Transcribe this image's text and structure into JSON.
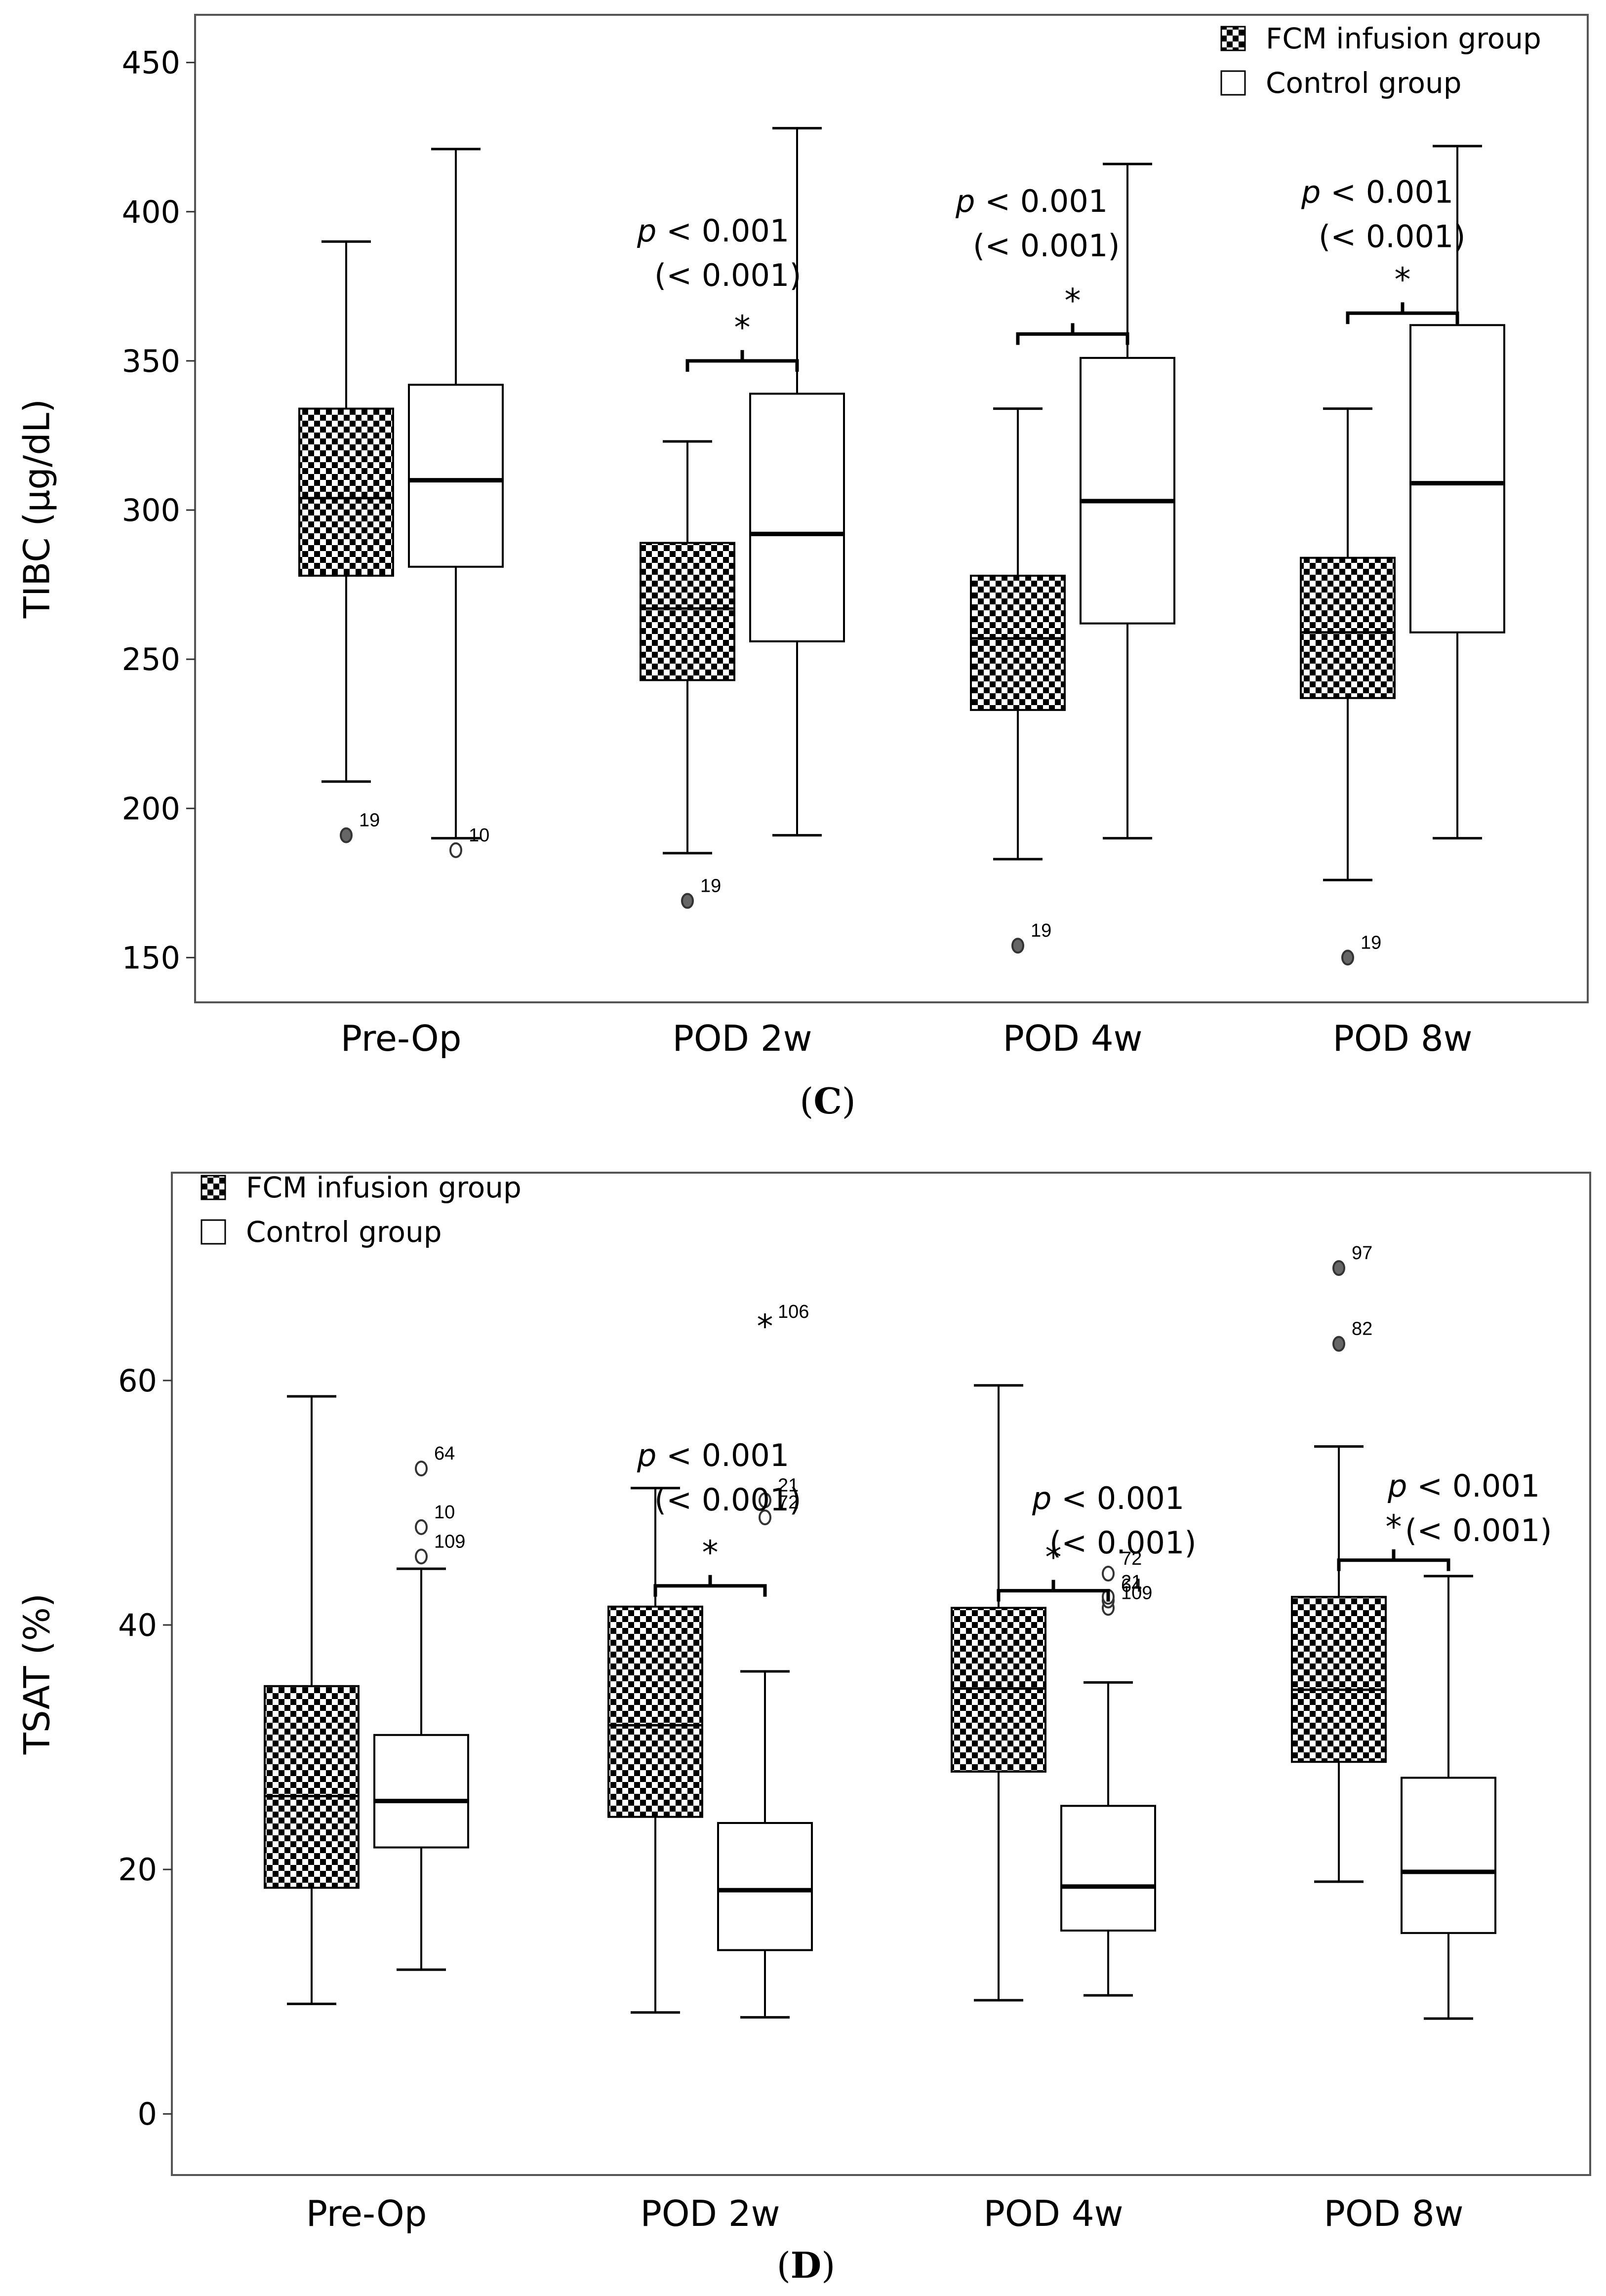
{
  "colors": {
    "axis": "#555555",
    "box_stroke": "#000000",
    "checker_dark": "#000000",
    "checker_light": "#ffffff"
  },
  "chart_data": [
    {
      "panel_label": "(C)",
      "panel_letter": "C",
      "type": "box",
      "ylabel": "TIBC (μg/dL)",
      "ylim": [
        135,
        466
      ],
      "yticks": [
        150,
        200,
        250,
        300,
        350,
        400,
        450
      ],
      "categories": [
        "Pre-Op",
        "POD 2w",
        "POD 4w",
        "POD 8w"
      ],
      "legend": {
        "position": "top-right",
        "entries": [
          {
            "label": "FCM infusion group",
            "fill": "checker"
          },
          {
            "label": "Control group",
            "fill": "white"
          }
        ]
      },
      "series": [
        {
          "name": "FCM infusion group",
          "boxes": [
            {
              "min": 209,
              "q1": 278,
              "median": 304,
              "q3": 334,
              "max": 390,
              "outliers": [
                {
                  "value": 191,
                  "label": "19",
                  "symbol": "o"
                }
              ]
            },
            {
              "min": 185,
              "q1": 243,
              "median": 267,
              "q3": 289,
              "max": 323,
              "outliers": [
                {
                  "value": 169,
                  "label": "19",
                  "symbol": "o"
                }
              ]
            },
            {
              "min": 183,
              "q1": 233,
              "median": 257,
              "q3": 278,
              "max": 334,
              "outliers": [
                {
                  "value": 154,
                  "label": "19",
                  "symbol": "o"
                }
              ]
            },
            {
              "min": 176,
              "q1": 237,
              "median": 259,
              "q3": 284,
              "max": 334,
              "outliers": [
                {
                  "value": 150,
                  "label": "19",
                  "symbol": "o"
                }
              ]
            }
          ]
        },
        {
          "name": "Control group",
          "boxes": [
            {
              "min": 190,
              "q1": 281,
              "median": 310,
              "q3": 342,
              "max": 421,
              "outliers": [
                {
                  "value": 186,
                  "label": "10",
                  "symbol": "o"
                }
              ]
            },
            {
              "min": 191,
              "q1": 256,
              "median": 292,
              "q3": 339,
              "max": 428,
              "outliers": []
            },
            {
              "min": 190,
              "q1": 262,
              "median": 303,
              "q3": 351,
              "max": 416,
              "outliers": []
            },
            {
              "min": 190,
              "q1": 259,
              "median": 309,
              "q3": 362,
              "max": 422,
              "outliers": []
            }
          ]
        }
      ],
      "annotations": [
        {
          "category": "POD 2w",
          "p": "p",
          "p_rest": " < 0.001",
          "paren": "(< 0.001)",
          "star": "*",
          "bracket_y": 350,
          "text_y": 390
        },
        {
          "category": "POD 4w",
          "p": "p",
          "p_rest": " < 0.001",
          "paren": "(< 0.001)",
          "star": "*",
          "bracket_y": 359,
          "text_y": 400
        },
        {
          "category": "POD 8w",
          "p": "p",
          "p_rest": " < 0.001",
          "paren": "(< 0.001)",
          "star": "*",
          "bracket_y": 366,
          "text_y": 403
        }
      ]
    },
    {
      "panel_label": "(D)",
      "panel_letter": "D",
      "type": "box",
      "ylabel": "TSAT (%)",
      "ylim": [
        -5,
        77
      ],
      "yticks": [
        0,
        20,
        40,
        60
      ],
      "categories": [
        "Pre-Op",
        "POD 2w",
        "POD 4w",
        "POD 8w"
      ],
      "legend": {
        "position": "top-left",
        "entries": [
          {
            "label": "FCM infusion group",
            "fill": "checker"
          },
          {
            "label": "Control group",
            "fill": "white"
          }
        ]
      },
      "series": [
        {
          "name": "FCM infusion group",
          "boxes": [
            {
              "min": 9,
              "q1": 18.5,
              "median": 26,
              "q3": 35,
              "max": 58.7,
              "outliers": []
            },
            {
              "min": 8.3,
              "q1": 24.3,
              "median": 31.8,
              "q3": 41.5,
              "max": 51.2,
              "outliers": []
            },
            {
              "min": 9.3,
              "q1": 28,
              "median": 34.8,
              "q3": 41.4,
              "max": 59.6,
              "outliers": []
            },
            {
              "min": 19,
              "q1": 28.8,
              "median": 34.7,
              "q3": 42.3,
              "max": 54.6,
              "outliers": [
                {
                  "value": 63,
                  "label": "82",
                  "symbol": "o"
                },
                {
                  "value": 69.2,
                  "label": "97",
                  "symbol": "o"
                }
              ]
            }
          ]
        },
        {
          "name": "Control group",
          "boxes": [
            {
              "min": 11.8,
              "q1": 21.8,
              "median": 25.6,
              "q3": 31,
              "max": 44.6,
              "outliers": [
                {
                  "value": 45.6,
                  "label": "109",
                  "symbol": "o"
                },
                {
                  "value": 48,
                  "label": "10",
                  "symbol": "o"
                },
                {
                  "value": 52.8,
                  "label": "64",
                  "symbol": "o"
                }
              ]
            },
            {
              "min": 7.9,
              "q1": 13.4,
              "median": 18.3,
              "q3": 23.8,
              "max": 36.2,
              "outliers": [
                {
                  "value": 48.8,
                  "label": "72",
                  "symbol": "o"
                },
                {
                  "value": 50.2,
                  "label": "21",
                  "symbol": "o"
                },
                {
                  "value": 64.4,
                  "label": "106",
                  "symbol": "*"
                }
              ]
            },
            {
              "min": 9.7,
              "q1": 15,
              "median": 18.6,
              "q3": 25.2,
              "max": 35.3,
              "outliers": [
                {
                  "value": 41.4,
                  "label": "109",
                  "symbol": "o"
                },
                {
                  "value": 42,
                  "label": "64",
                  "symbol": "o"
                },
                {
                  "value": 42.3,
                  "label": "21",
                  "symbol": "o"
                },
                {
                  "value": 44.2,
                  "label": "72",
                  "symbol": "o"
                }
              ]
            },
            {
              "min": 7.8,
              "q1": 14.8,
              "median": 19.8,
              "q3": 27.5,
              "max": 44,
              "outliers": []
            }
          ]
        }
      ],
      "annotations": [
        {
          "category": "POD 2w",
          "p": "p",
          "p_rest": " < 0.001",
          "paren": "(< 0.001)",
          "star": "*",
          "bracket_y": 43.2,
          "text_y": 53
        },
        {
          "category": "POD 4w",
          "p": "p",
          "p_rest": " < 0.001",
          "paren": "(< 0.001)",
          "star": "*",
          "bracket_y": 42.8,
          "text_y": 49.5
        },
        {
          "category": "POD 8w",
          "p": "p",
          "p_rest": " < 0.001",
          "paren": "(< 0.001)",
          "star": "*",
          "bracket_y": 45.3,
          "text_y": 50.5
        }
      ]
    }
  ]
}
